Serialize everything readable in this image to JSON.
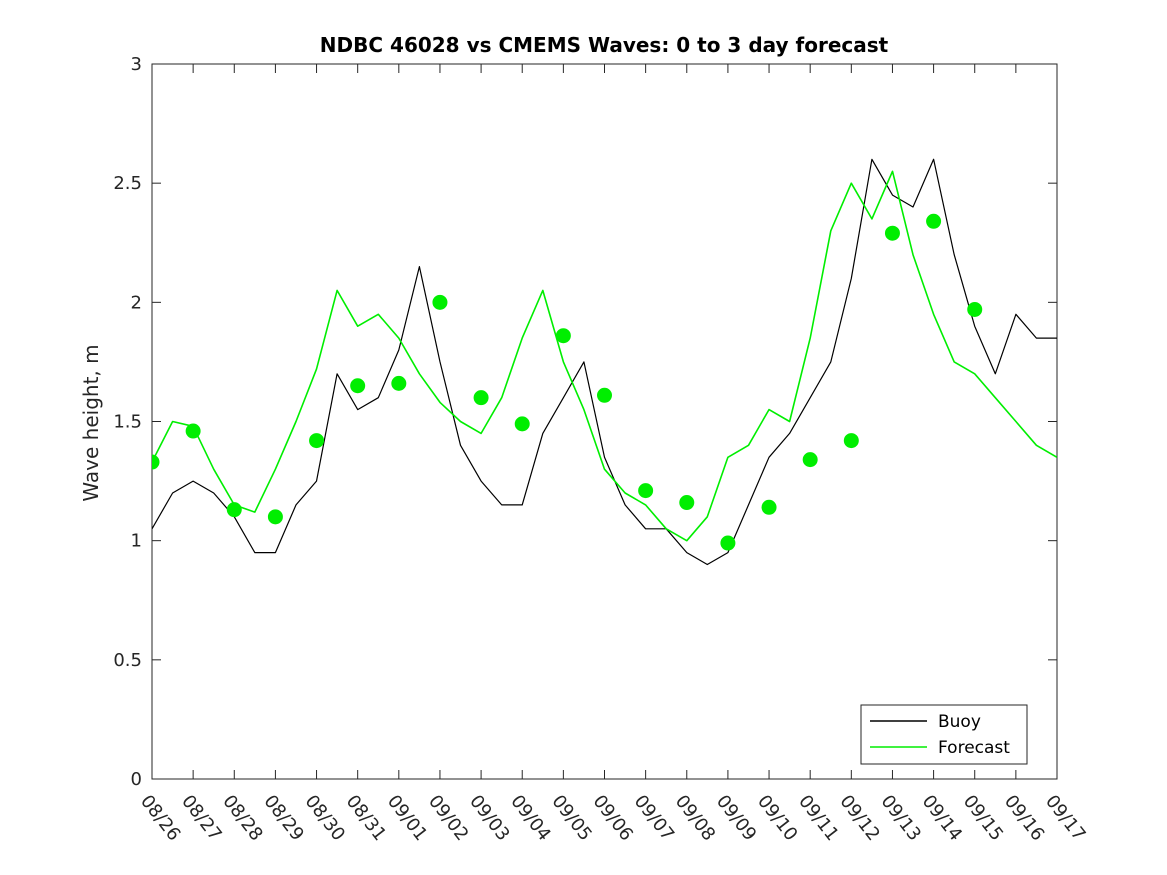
{
  "chart_data": {
    "type": "line",
    "title": "NDBC 46028 vs CMEMS Waves: 0 to 3 day forecast",
    "xlabel": "",
    "ylabel": "Wave height, m",
    "x_tick_labels": [
      "08/26",
      "08/27",
      "08/28",
      "08/29",
      "08/30",
      "08/31",
      "09/01",
      "09/02",
      "09/03",
      "09/04",
      "09/05",
      "09/06",
      "09/07",
      "09/08",
      "09/09",
      "09/10",
      "09/11",
      "09/12",
      "09/13",
      "09/14",
      "09/15",
      "09/16",
      "09/17"
    ],
    "y_ticks": [
      "0",
      "0.5",
      "1",
      "1.5",
      "2",
      "2.5",
      "3"
    ],
    "xlim": [
      0,
      22
    ],
    "ylim": [
      0,
      3
    ],
    "grid": false,
    "legend_placement": "bottom-right",
    "series": [
      {
        "name": "Buoy",
        "color": "#000000",
        "x": [
          0,
          0.5,
          1,
          1.5,
          2,
          2.5,
          3,
          3.5,
          4,
          4.5,
          5,
          5.5,
          6,
          6.5,
          7,
          7.5,
          8,
          8.5,
          9,
          9.5,
          10,
          10.5,
          11,
          11.5,
          12,
          12.5,
          13,
          13.5,
          14,
          14.5,
          15,
          15.5,
          16,
          16.5,
          17,
          17.5,
          18,
          18.5,
          19,
          19.5,
          20,
          20.5,
          21,
          21.5,
          22
        ],
        "y": [
          1.05,
          1.2,
          1.25,
          1.2,
          1.1,
          0.95,
          0.95,
          1.15,
          1.25,
          1.7,
          1.55,
          1.6,
          1.8,
          2.15,
          1.75,
          1.4,
          1.25,
          1.15,
          1.15,
          1.45,
          1.6,
          1.75,
          1.35,
          1.15,
          1.05,
          1.05,
          0.95,
          0.9,
          0.95,
          1.15,
          1.35,
          1.45,
          1.6,
          1.75,
          2.1,
          2.6,
          2.45,
          2.4,
          2.6,
          2.2,
          1.9,
          1.7,
          1.95,
          1.85,
          1.85
        ]
      },
      {
        "name": "Forecast",
        "color": "#00ee00",
        "x": [
          0,
          0.5,
          1,
          1.5,
          2,
          2.5,
          3,
          3.5,
          4,
          4.5,
          5,
          5.5,
          6,
          6.5,
          7,
          7.5,
          8,
          8.5,
          9,
          9.5,
          10,
          10.5,
          11,
          11.5,
          12,
          12.5,
          13,
          13.5,
          14,
          14.5,
          15,
          15.5,
          16,
          16.5,
          17,
          17.5,
          18,
          18.5,
          19,
          19.5,
          20,
          20.5,
          21,
          21.5,
          22
        ],
        "y": [
          1.33,
          1.5,
          1.48,
          1.3,
          1.15,
          1.12,
          1.3,
          1.5,
          1.72,
          2.05,
          1.9,
          1.95,
          1.85,
          1.7,
          1.58,
          1.5,
          1.45,
          1.6,
          1.85,
          2.05,
          1.75,
          1.55,
          1.3,
          1.2,
          1.15,
          1.05,
          1.0,
          1.1,
          1.35,
          1.4,
          1.55,
          1.5,
          1.85,
          2.3,
          2.5,
          2.35,
          2.55,
          2.2,
          1.95,
          1.75,
          1.7,
          1.6,
          1.5,
          1.4,
          1.35
        ]
      },
      {
        "name": "",
        "color": "#00ee00",
        "markers": true,
        "x": [
          0,
          1,
          2,
          3,
          4,
          5,
          6,
          7,
          8,
          9,
          10,
          11,
          12,
          13,
          14,
          15,
          16,
          17,
          18,
          19,
          20
        ],
        "y": [
          1.33,
          1.46,
          1.13,
          1.1,
          1.42,
          1.65,
          1.66,
          2.0,
          1.6,
          1.49,
          1.86,
          1.61,
          1.21,
          1.16,
          0.99,
          1.14,
          1.34,
          1.42,
          2.29,
          2.34,
          1.97
        ]
      }
    ]
  }
}
